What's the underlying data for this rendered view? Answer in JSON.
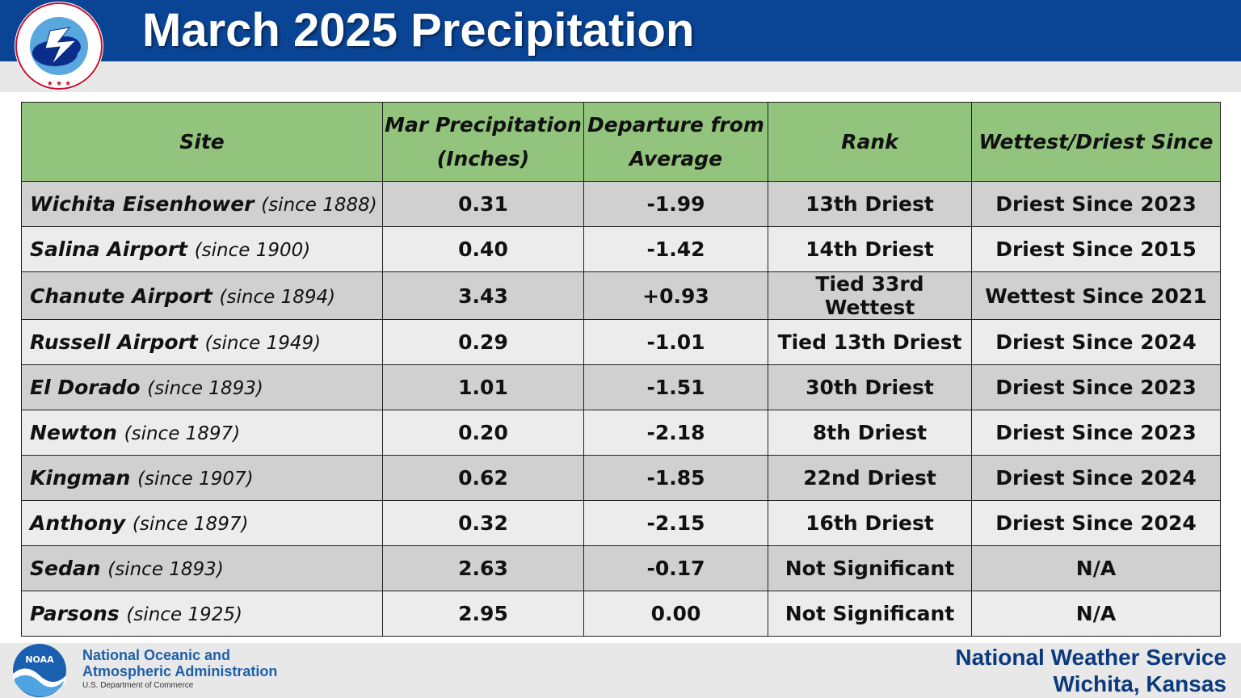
{
  "header": {
    "title": "March 2025 Precipitation",
    "logo_text": "NATIONAL WEATHER SERVICE"
  },
  "table": {
    "headers": {
      "site": "Site",
      "precip_line1": "Mar Precipitation",
      "precip_line2": "(Inches)",
      "departure_line1": "Departure from",
      "departure_line2": "Average",
      "rank": "Rank",
      "since": "Wettest/Driest Since"
    },
    "rows": [
      {
        "site": "Wichita Eisenhower",
        "since_year": "(since 1888)",
        "precip": "0.31",
        "departure": "-1.99",
        "rank": "13th Driest",
        "record": "Driest Since 2023"
      },
      {
        "site": "Salina Airport",
        "since_year": "(since 1900)",
        "precip": "0.40",
        "departure": "-1.42",
        "rank": "14th Driest",
        "record": "Driest Since 2015"
      },
      {
        "site": "Chanute Airport",
        "since_year": "(since 1894)",
        "precip": "3.43",
        "departure": "+0.93",
        "rank": "Tied 33rd Wettest",
        "record": "Wettest Since 2021"
      },
      {
        "site": "Russell Airport",
        "since_year": "(since 1949)",
        "precip": "0.29",
        "departure": "-1.01",
        "rank": "Tied 13th Driest",
        "record": "Driest Since 2024"
      },
      {
        "site": "El Dorado",
        "since_year": "(since 1893)",
        "precip": "1.01",
        "departure": "-1.51",
        "rank": "30th Driest",
        "record": "Driest Since 2023"
      },
      {
        "site": "Newton",
        "since_year": "(since 1897)",
        "precip": "0.20",
        "departure": "-2.18",
        "rank": "8th Driest",
        "record": "Driest Since 2023"
      },
      {
        "site": "Kingman",
        "since_year": "(since 1907)",
        "precip": "0.62",
        "departure": "-1.85",
        "rank": "22nd Driest",
        "record": "Driest Since 2024"
      },
      {
        "site": "Anthony",
        "since_year": "(since 1897)",
        "precip": "0.32",
        "departure": "-2.15",
        "rank": "16th Driest",
        "record": "Driest Since 2024"
      },
      {
        "site": "Sedan",
        "since_year": "(since 1893)",
        "precip": "2.63",
        "departure": "-0.17",
        "rank": "Not Significant",
        "record": "N/A"
      },
      {
        "site": "Parsons",
        "since_year": "(since 1925)",
        "precip": "2.95",
        "departure": "0.00",
        "rank": "Not Significant",
        "record": "N/A"
      }
    ]
  },
  "footer": {
    "noaa_logo_text": "NOAA",
    "noaa_line1": "National Oceanic and",
    "noaa_line2": "Atmospheric Administration",
    "noaa_sub": "U.S. Department of Commerce",
    "nws_line1": "National Weather Service",
    "nws_line2": "Wichita, Kansas"
  },
  "colors": {
    "header_blue": "#0a4495",
    "table_header_green": "#93c47d",
    "negative_departure": "#b8650e",
    "positive_departure": "#3a7d1a",
    "row_dark": "#d0d0d0",
    "row_light": "#ececec"
  }
}
